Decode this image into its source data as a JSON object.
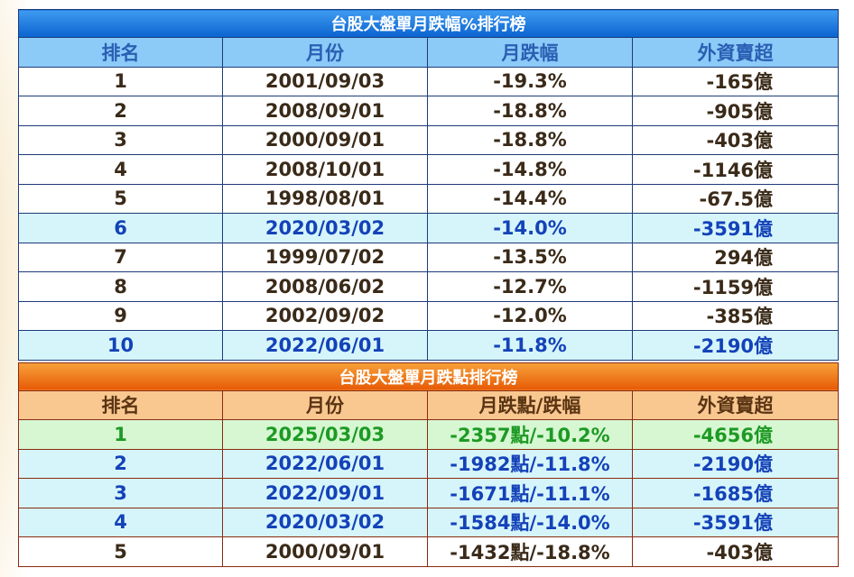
{
  "table1": {
    "title": "台股大盤單月跌幅%排行榜",
    "headers": [
      "排名",
      "月份",
      "月跌幅",
      "外資賣超"
    ],
    "rows": [
      {
        "rank": "1",
        "date": "2001/09/03",
        "change": "-19.3%",
        "foreign": "-165億",
        "highlight": false
      },
      {
        "rank": "2",
        "date": "2008/09/01",
        "change": "-18.8%",
        "foreign": "-905億",
        "highlight": false
      },
      {
        "rank": "3",
        "date": "2000/09/01",
        "change": "-18.8%",
        "foreign": "-403億",
        "highlight": false
      },
      {
        "rank": "4",
        "date": "2008/10/01",
        "change": "-14.8%",
        "foreign": "-1146億",
        "highlight": false
      },
      {
        "rank": "5",
        "date": "1998/08/01",
        "change": "-14.4%",
        "foreign": "-67.5億",
        "highlight": false
      },
      {
        "rank": "6",
        "date": "2020/03/02",
        "change": "-14.0%",
        "foreign": "-3591億",
        "highlight": true
      },
      {
        "rank": "7",
        "date": "1999/07/02",
        "change": "-13.5%",
        "foreign": "294億",
        "highlight": false
      },
      {
        "rank": "8",
        "date": "2008/06/02",
        "change": "-12.7%",
        "foreign": "-1159億",
        "highlight": false
      },
      {
        "rank": "9",
        "date": "2002/09/02",
        "change": "-12.0%",
        "foreign": "-385億",
        "highlight": false
      },
      {
        "rank": "10",
        "date": "2022/06/01",
        "change": "-11.8%",
        "foreign": "-2190億",
        "highlight": true
      }
    ]
  },
  "table2": {
    "title": "台股大盤單月跌點排行榜",
    "headers": [
      "排名",
      "月份",
      "月跌點/跌幅",
      "外資賣超"
    ],
    "rows": [
      {
        "rank": "1",
        "date": "2025/03/03",
        "change": "-2357點/-10.2%",
        "foreign": "-4656億",
        "style": "green"
      },
      {
        "rank": "2",
        "date": "2022/06/01",
        "change": "-1982點/-11.8%",
        "foreign": "-2190億",
        "style": "cyan"
      },
      {
        "rank": "3",
        "date": "2022/09/01",
        "change": "-1671點/-11.1%",
        "foreign": "-1685億",
        "style": "cyan"
      },
      {
        "rank": "4",
        "date": "2020/03/02",
        "change": "-1584點/-14.0%",
        "foreign": "-3591億",
        "style": "cyan"
      },
      {
        "rank": "5",
        "date": "2000/09/01",
        "change": "-1432點/-18.8%",
        "foreign": "-403億",
        "style": "plain"
      }
    ]
  },
  "colors": {
    "blue_header": "#0a63d0",
    "orange_header": "#e65a05",
    "highlight_text": "#1442b8",
    "green_text": "#1d9a24"
  }
}
